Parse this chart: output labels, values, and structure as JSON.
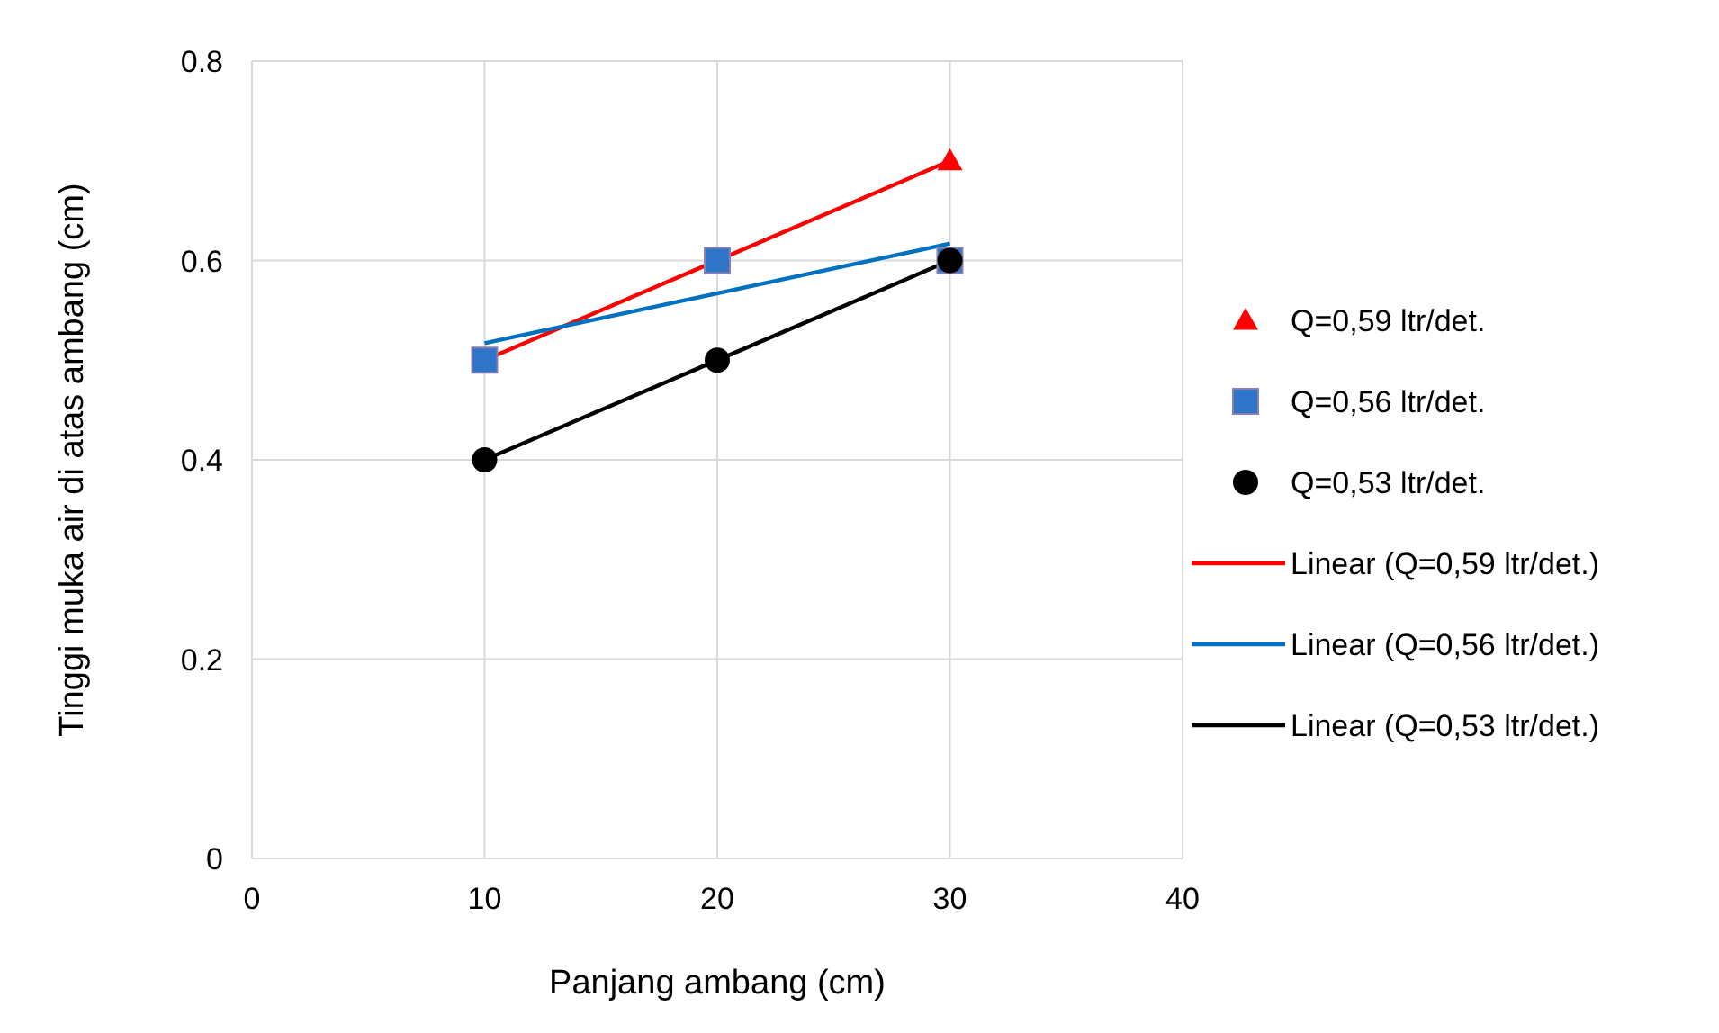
{
  "chart_data": {
    "type": "scatter",
    "xlabel": "Panjang ambang (cm)",
    "ylabel": "Tinggi muka air di atas ambang (cm)",
    "xlim": [
      0,
      40
    ],
    "ylim": [
      0,
      0.8
    ],
    "xticks": [
      0,
      10,
      20,
      30,
      40
    ],
    "yticks": [
      0,
      0.2,
      0.4,
      0.6,
      0.8
    ],
    "grid": true,
    "legend": "right",
    "series": [
      {
        "name": "Q=0,59 ltr/det.",
        "marker": "triangle",
        "color": "#ff0000",
        "x": [
          30
        ],
        "values": [
          0.7
        ]
      },
      {
        "name": "Q=0,56 ltr/det.",
        "marker": "square",
        "color": "#2e75c8",
        "x": [
          10,
          20,
          30
        ],
        "values": [
          0.5,
          0.6,
          0.6
        ]
      },
      {
        "name": "Q=0,53 ltr/det.",
        "marker": "circle",
        "color": "#000000",
        "x": [
          10,
          20,
          30
        ],
        "values": [
          0.4,
          0.5,
          0.6
        ]
      },
      {
        "name": "Linear (Q=0,59 ltr/det.)",
        "type": "line",
        "marker": "none",
        "color": "#ff0000",
        "x": [
          10,
          30
        ],
        "values": [
          0.5,
          0.7
        ]
      },
      {
        "name": "Linear (Q=0,56 ltr/det.)",
        "type": "line",
        "marker": "none",
        "color": "#0070c0",
        "x": [
          10,
          30
        ],
        "values": [
          0.517,
          0.617
        ]
      },
      {
        "name": "Linear (Q=0,53 ltr/det.)",
        "type": "line",
        "marker": "none",
        "color": "#000000",
        "x": [
          10,
          30
        ],
        "values": [
          0.4,
          0.6
        ]
      }
    ]
  }
}
